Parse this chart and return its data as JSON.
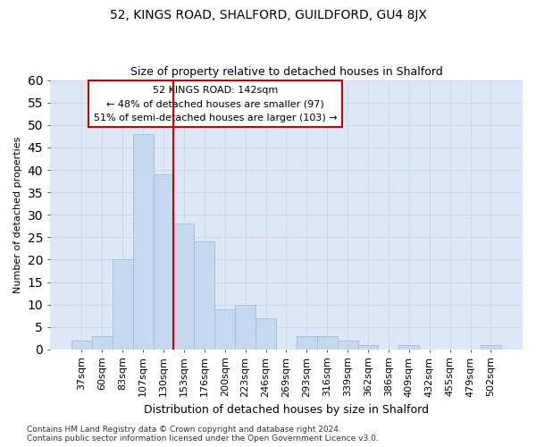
{
  "title": "52, KINGS ROAD, SHALFORD, GUILDFORD, GU4 8JX",
  "subtitle": "Size of property relative to detached houses in Shalford",
  "xlabel": "Distribution of detached houses by size in Shalford",
  "ylabel": "Number of detached properties",
  "categories": [
    "37sqm",
    "60sqm",
    "83sqm",
    "107sqm",
    "130sqm",
    "153sqm",
    "176sqm",
    "200sqm",
    "223sqm",
    "246sqm",
    "269sqm",
    "293sqm",
    "316sqm",
    "339sqm",
    "362sqm",
    "386sqm",
    "409sqm",
    "432sqm",
    "455sqm",
    "479sqm",
    "502sqm"
  ],
  "values": [
    2,
    3,
    20,
    48,
    39,
    28,
    24,
    9,
    10,
    7,
    0,
    3,
    3,
    2,
    1,
    0,
    1,
    0,
    0,
    0,
    1
  ],
  "bar_color": "#c5d8ed",
  "bar_edgecolor": "#a0bcda",
  "vline_x": 4.5,
  "vline_color": "#cc0000",
  "annotation_text": "52 KINGS ROAD: 142sqm\n← 48% of detached houses are smaller (97)\n51% of semi-detached houses are larger (103) →",
  "annotation_box_color": "white",
  "annotation_box_edgecolor": "#cc0000",
  "ylim": [
    0,
    60
  ],
  "yticks": [
    0,
    5,
    10,
    15,
    20,
    25,
    30,
    35,
    40,
    45,
    50,
    55,
    60
  ],
  "grid_color": "#c8d8e8",
  "background_color": "#dce8f5",
  "footer": "Contains HM Land Registry data © Crown copyright and database right 2024.\nContains public sector information licensed under the Open Government Licence v3.0.",
  "title_fontsize": 10,
  "subtitle_fontsize": 9,
  "xlabel_fontsize": 9,
  "ylabel_fontsize": 8,
  "tick_fontsize": 8,
  "annotation_fontsize": 8,
  "footer_fontsize": 6.5
}
